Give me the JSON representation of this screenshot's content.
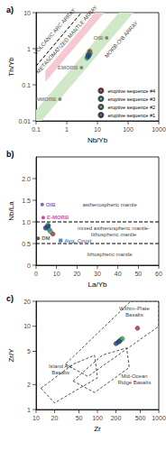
{
  "chart_data": [
    {
      "panel": "a)",
      "type": "scatter",
      "log": true,
      "grid": false,
      "legend": "bottom-right",
      "xlabel": "Nb/Yb",
      "ylabel": "Th/Yb",
      "xlim": [
        0.1,
        1000
      ],
      "ylim": [
        0.01,
        10
      ],
      "xticks": [
        0.1,
        1,
        10,
        100,
        1000
      ],
      "yticks": [
        0.01,
        0.1,
        1,
        10
      ],
      "series": [
        {
          "name": "eruptive sequence #4",
          "color": "#b0263a",
          "x": [
            5.6
          ],
          "y": [
            0.85
          ]
        },
        {
          "name": "eruptive sequence #3",
          "color": "#1aa6b0",
          "x": [
            4.6,
            5.2
          ],
          "y": [
            0.55,
            0.62
          ]
        },
        {
          "name": "eruptive sequence #2",
          "color": "#3aa75a",
          "x": [
            5.0,
            5.8
          ],
          "y": [
            0.7,
            0.75
          ]
        },
        {
          "name": "eruptive sequence #1",
          "color": "#2b3f8c",
          "x": [
            4.8,
            5.4
          ],
          "y": [
            0.6,
            0.68
          ]
        }
      ],
      "references": [
        {
          "label": "NMORB",
          "x": 0.6,
          "y": 0.04,
          "color": "#6f6f6f"
        },
        {
          "label": "EMORB",
          "x": 3.0,
          "y": 0.3,
          "color": "#6f6f6f"
        },
        {
          "label": "OIB",
          "x": 20,
          "y": 2,
          "color": "#6f6f6f"
        }
      ],
      "bands": [
        {
          "color": "#f6c9d2",
          "polygon": [
            [
              0.2,
              0.12
            ],
            [
              0.2,
              0.24
            ],
            [
              8.3,
              10
            ],
            [
              16.7,
              10
            ]
          ]
        },
        {
          "color": "#cfe8c8",
          "polygon": [
            [
              0.1,
              0.01
            ],
            [
              0.15,
              0.01
            ],
            [
              150,
              10
            ],
            [
              50,
              10
            ],
            [
              0.1,
              0.02
            ]
          ]
        }
      ],
      "lines": [
        {
          "points": [
            [
              0.1,
              0.33
            ],
            [
              3,
              10
            ]
          ],
          "line_style": "dashed"
        }
      ],
      "annotations": [
        {
          "text": "VOLCANIC ARC ARRAY",
          "x": 0.4,
          "y": 3
        },
        {
          "text": "METASOMATIZED MANTLE ARRAY",
          "x": 1.0,
          "y": 1.8
        },
        {
          "text": "MORB-OIB ARRAY",
          "x": 60,
          "y": 1.8
        }
      ]
    },
    {
      "panel": "b)",
      "type": "scatter",
      "grid": false,
      "xlabel": "La/Yb",
      "ylabel": "Nb/La",
      "xlim": [
        0,
        60
      ],
      "ylim": [
        0,
        2.5
      ],
      "xticks": [
        0,
        10,
        20,
        30,
        40,
        50,
        60
      ],
      "yticks": [
        0,
        0.5,
        {
          "value": 1,
          "label": "1.0"
        },
        1.5,
        {
          "value": 2,
          "label": "2.0"
        }
      ],
      "series": [
        {
          "name": "eruptive sequence #4",
          "color": "#b0263a",
          "x": [
            8.2
          ],
          "y": [
            0.72
          ]
        },
        {
          "name": "eruptive sequence #3",
          "color": "#1aa6b0",
          "x": [
            5.2,
            6.4
          ],
          "y": [
            0.88,
            0.82
          ]
        },
        {
          "name": "eruptive sequence #2",
          "color": "#3aa75a",
          "x": [
            5.8,
            7.0
          ],
          "y": [
            0.93,
            0.78
          ]
        },
        {
          "name": "eruptive sequence #1",
          "color": "#2b3f8c",
          "x": [
            4.6,
            6.0
          ],
          "y": [
            0.86,
            0.9
          ]
        }
      ],
      "references": [
        {
          "label": "E-MORB",
          "x": 3.5,
          "y": 1.1,
          "color": "#c2188f"
        },
        {
          "label": "OIB",
          "x": 3,
          "y": 1.4,
          "color": "#6a3d9a"
        },
        {
          "label": "DM",
          "x": 1,
          "y": 0.62,
          "color": "#333333"
        },
        {
          "label": "Avg. Crust",
          "x": 12,
          "y": 0.57,
          "color": "#1f5fbf",
          "marker": "square"
        }
      ],
      "lines": [
        {
          "points": [
            [
              0,
              1
            ],
            [
              60,
              1
            ]
          ],
          "line_style": "dashed"
        },
        {
          "points": [
            [
              0,
              0.5
            ],
            [
              60,
              0.5
            ]
          ],
          "line_style": "dashed"
        }
      ],
      "annotations": [
        {
          "text": "asthenospheric mantle",
          "x": 36,
          "y": 1.4
        },
        {
          "text": "mixed asthenospheric mantle-\nlithospheric mantle",
          "x": 38,
          "y": 0.78
        },
        {
          "text": "lithospheric mantle",
          "x": 36,
          "y": 0.25
        }
      ]
    },
    {
      "panel": "c)",
      "type": "scatter",
      "log": true,
      "grid": false,
      "xlabel": "Zr",
      "ylabel": "Zr/Y",
      "xlim": [
        10,
        1000
      ],
      "ylim": [
        1,
        20
      ],
      "xticks": [
        10,
        20,
        50,
        100,
        200,
        500,
        1000
      ],
      "yticks": [
        1,
        2,
        5,
        10,
        20
      ],
      "series": [
        {
          "name": "eruptive sequence #4",
          "color": "#b0263a",
          "x": [
            450
          ],
          "y": [
            9.5
          ]
        },
        {
          "name": "eruptive sequence #3",
          "color": "#1aa6b0",
          "x": [
            215,
            240
          ],
          "y": [
            6.4,
            6.9
          ]
        },
        {
          "name": "eruptive sequence #2",
          "color": "#3aa75a",
          "x": [
            230,
            255
          ],
          "y": [
            6.6,
            7.1
          ]
        },
        {
          "name": "eruptive sequence #1",
          "color": "#2b3f8c",
          "x": [
            200,
            225
          ],
          "y": [
            6.2,
            6.6
          ]
        }
      ],
      "fields": [
        {
          "line_style": "dashed",
          "polygon": [
            [
              30,
              3.5
            ],
            [
              70,
              2.5
            ],
            [
              1000,
              10
            ],
            [
              1000,
              20
            ],
            [
              350,
              20
            ]
          ]
        },
        {
          "line_style": "dashed",
          "polygon": [
            [
              12,
              1.8
            ],
            [
              20,
              1.2
            ],
            [
              100,
              2.4
            ],
            [
              90,
              4.5
            ],
            [
              40,
              3.5
            ]
          ]
        },
        {
          "line_style": "dashed",
          "polygon": [
            [
              40,
              2.2
            ],
            [
              90,
              1.6
            ],
            [
              330,
              3.2
            ],
            [
              300,
              5.5
            ],
            [
              120,
              4.5
            ]
          ]
        }
      ],
      "annotations": [
        {
          "text": "Within–Plate\nBasalts",
          "x": 400,
          "y": 15
        },
        {
          "text": "Island Arc\nBasalts",
          "x": 25,
          "y": 3
        },
        {
          "text": "Mid-Ocean\nRidge Basalts",
          "x": 400,
          "y": 2.3
        }
      ]
    }
  ]
}
